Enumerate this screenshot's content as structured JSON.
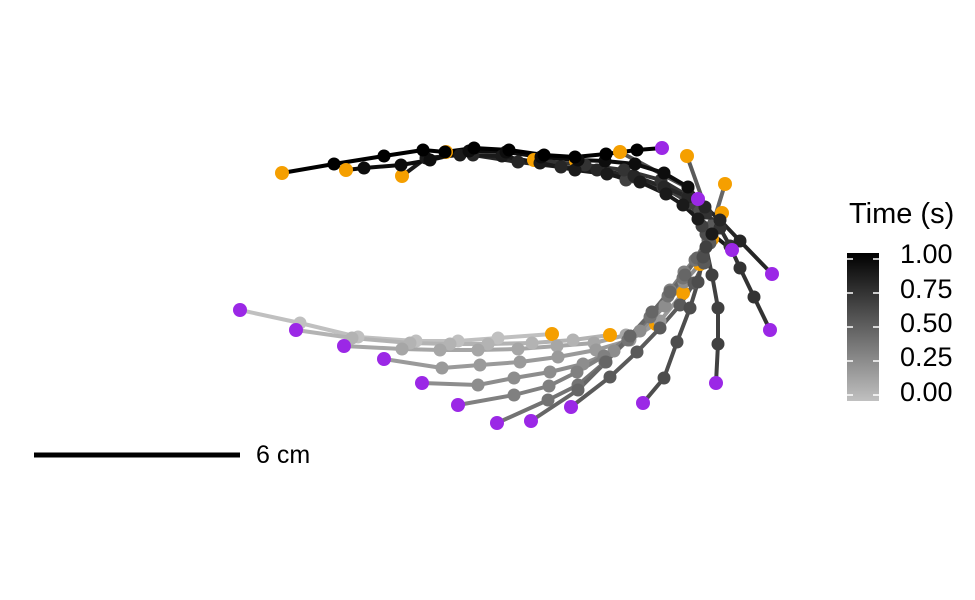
{
  "chart_data": {
    "type": "line",
    "legend": {
      "title": "Time (s)",
      "range": [
        0,
        1
      ],
      "ticks": [
        "1.00",
        "0.75",
        "0.50",
        "0.25",
        "0.00"
      ]
    },
    "scale_bar": {
      "label": "6 cm"
    },
    "colors": {
      "base": "#9b28e6",
      "tip": "#f59f00",
      "gradient_low": "#c0c0c0",
      "gradient_high": "#000000"
    },
    "frames": [
      {
        "time": 0.0,
        "points": [
          [
            240,
            310
          ],
          [
            300,
            323
          ],
          [
            358,
            337
          ],
          [
            416,
            341
          ],
          [
            458,
            341
          ],
          [
            498,
            338
          ],
          [
            552,
            334
          ]
        ]
      },
      {
        "time": 0.067,
        "points": [
          [
            296,
            330
          ],
          [
            352,
            338
          ],
          [
            410,
            343
          ],
          [
            450,
            344
          ],
          [
            488,
            344
          ],
          [
            532,
            343
          ],
          [
            573,
            340
          ],
          [
            610,
            335
          ]
        ]
      },
      {
        "time": 0.133,
        "points": [
          [
            344,
            346
          ],
          [
            402,
            349
          ],
          [
            440,
            350
          ],
          [
            478,
            350
          ],
          [
            518,
            349
          ],
          [
            557,
            346
          ],
          [
            594,
            343
          ],
          [
            626,
            335
          ],
          [
            656,
            324
          ]
        ]
      },
      {
        "time": 0.2,
        "points": [
          [
            384,
            359
          ],
          [
            442,
            368
          ],
          [
            480,
            365
          ],
          [
            520,
            362
          ],
          [
            558,
            357
          ],
          [
            596,
            350
          ],
          [
            630,
            340
          ],
          [
            660,
            321
          ],
          [
            683,
            293
          ]
        ]
      },
      {
        "time": 0.267,
        "points": [
          [
            422,
            383
          ],
          [
            478,
            385
          ],
          [
            514,
            378
          ],
          [
            550,
            372
          ],
          [
            583,
            364
          ],
          [
            614,
            351
          ],
          [
            640,
            331
          ],
          [
            665,
            306
          ],
          [
            684,
            282
          ],
          [
            700,
            264
          ]
        ]
      },
      {
        "time": 0.333,
        "points": [
          [
            458,
            405
          ],
          [
            514,
            395
          ],
          [
            549,
            386
          ],
          [
            577,
            372
          ],
          [
            604,
            356
          ],
          [
            630,
            336
          ],
          [
            652,
            313
          ],
          [
            670,
            290
          ],
          [
            684,
            272
          ],
          [
            712,
            239
          ]
        ]
      },
      {
        "time": 0.4,
        "points": [
          [
            497,
            423
          ],
          [
            548,
            400
          ],
          [
            578,
            385
          ],
          [
            605,
            362
          ],
          [
            628,
            340
          ],
          [
            650,
            317
          ],
          [
            668,
            296
          ],
          [
            683,
            278
          ],
          [
            695,
            260
          ],
          [
            722,
            213
          ]
        ]
      },
      {
        "time": 0.467,
        "points": [
          [
            531,
            421
          ],
          [
            578,
            390
          ],
          [
            606,
            362
          ],
          [
            630,
            336
          ],
          [
            652,
            312
          ],
          [
            670,
            292
          ],
          [
            685,
            275
          ],
          [
            697,
            258
          ],
          [
            708,
            240
          ],
          [
            725,
            184
          ]
        ]
      },
      {
        "time": 0.533,
        "points": [
          [
            571,
            407
          ],
          [
            610,
            377
          ],
          [
            637,
            352
          ],
          [
            660,
            328
          ],
          [
            680,
            305
          ],
          [
            694,
            283
          ],
          [
            704,
            263
          ],
          [
            710,
            243
          ],
          [
            712,
            226
          ],
          [
            687,
            156
          ]
        ]
      },
      {
        "time": 0.6,
        "points": [
          [
            643,
            403
          ],
          [
            664,
            378
          ],
          [
            677,
            342
          ],
          [
            690,
            308
          ],
          [
            698,
            282
          ],
          [
            703,
            257
          ],
          [
            706,
            234
          ],
          [
            700,
            210
          ],
          [
            688,
            188
          ],
          [
            620,
            152
          ]
        ]
      },
      {
        "time": 0.667,
        "points": [
          [
            716,
            383
          ],
          [
            718,
            344
          ],
          [
            718,
            308
          ],
          [
            712,
            275
          ],
          [
            706,
            247
          ],
          [
            702,
            226
          ],
          [
            690,
            203
          ],
          [
            663,
            187
          ],
          [
            626,
            180
          ],
          [
            576,
            161
          ]
        ]
      },
      {
        "time": 0.733,
        "points": [
          [
            770,
            330
          ],
          [
            754,
            297
          ],
          [
            740,
            268
          ],
          [
            730,
            246
          ],
          [
            720,
            228
          ],
          [
            706,
            213
          ],
          [
            688,
            196
          ],
          [
            661,
            180
          ],
          [
            624,
            170
          ],
          [
            585,
            165
          ],
          [
            534,
            160
          ]
        ]
      },
      {
        "time": 0.8,
        "points": [
          [
            772,
            274
          ],
          [
            740,
            241
          ],
          [
            720,
            220
          ],
          [
            705,
            207
          ],
          [
            688,
            197
          ],
          [
            664,
            187
          ],
          [
            634,
            176
          ],
          [
            597,
            170
          ],
          [
            561,
            167
          ],
          [
            518,
            162
          ],
          [
            473,
            155
          ],
          [
            446,
            152
          ]
        ]
      },
      {
        "time": 0.867,
        "points": [
          [
            732,
            250
          ],
          [
            712,
            234
          ],
          [
            698,
            219
          ],
          [
            683,
            205
          ],
          [
            666,
            194
          ],
          [
            640,
            182
          ],
          [
            607,
            174
          ],
          [
            575,
            170
          ],
          [
            540,
            163
          ],
          [
            502,
            156
          ],
          [
            460,
            155
          ],
          [
            426,
            158
          ],
          [
            402,
            176
          ]
        ]
      },
      {
        "time": 0.933,
        "points": [
          [
            698,
            199
          ],
          [
            688,
            187
          ],
          [
            664,
            173
          ],
          [
            635,
            164
          ],
          [
            605,
            161
          ],
          [
            578,
            160
          ],
          [
            541,
            157
          ],
          [
            506,
            152
          ],
          [
            469,
            151
          ],
          [
            430,
            160
          ],
          [
            401,
            165
          ],
          [
            364,
            168
          ],
          [
            346,
            170
          ]
        ]
      },
      {
        "time": 1.0,
        "points": [
          [
            662,
            148
          ],
          [
            637,
            150
          ],
          [
            606,
            154
          ],
          [
            575,
            157
          ],
          [
            544,
            155
          ],
          [
            509,
            150
          ],
          [
            474,
            148
          ],
          [
            445,
            152
          ],
          [
            423,
            150
          ],
          [
            384,
            156
          ],
          [
            334,
            164
          ],
          [
            282,
            173
          ]
        ]
      }
    ]
  }
}
